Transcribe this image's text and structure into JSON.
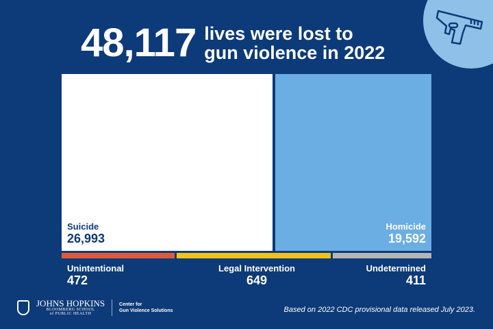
{
  "header": {
    "total": "48,117",
    "line1": "lives were lost to",
    "line2": "gun violence in 2022"
  },
  "chart_data": {
    "type": "treemap",
    "title": "48,117 lives were lost to gun violence in 2022",
    "categories": [
      "Suicide",
      "Homicide",
      "Unintentional",
      "Legal Intervention",
      "Undetermined"
    ],
    "values": [
      26993,
      19592,
      472,
      649,
      411
    ],
    "labels": [
      "26,993",
      "19,592",
      "472",
      "649",
      "411"
    ],
    "colors": [
      "#ffffff",
      "#6aaee3",
      "#e05a3a",
      "#f2c21a",
      "#b5b5b5"
    ]
  },
  "footer": {
    "logo_line1": "JOHNS HOPKINS",
    "logo_line2": "BLOOMBERG SCHOOL",
    "logo_line3": "of PUBLIC HEALTH",
    "center_line1": "Center for",
    "center_line2": "Gun Violence Solutions",
    "source": "Based on 2022 CDC provisional data released July 2023."
  }
}
